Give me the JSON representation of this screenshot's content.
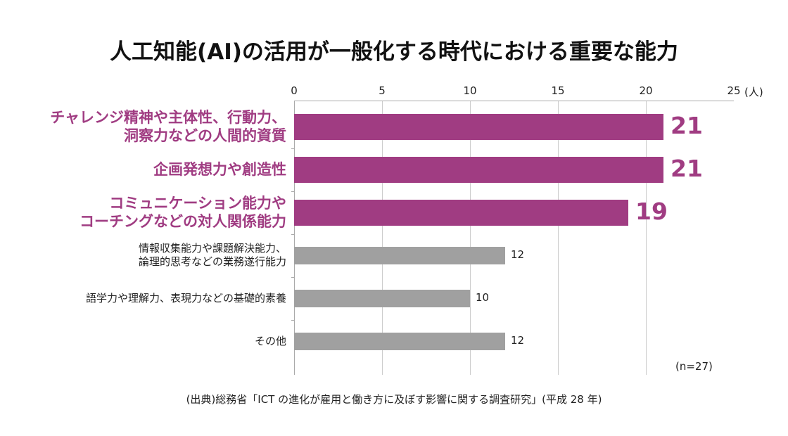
{
  "chart_data": {
    "type": "bar",
    "orientation": "horizontal",
    "title": "人工知能(AI)の活用が一般化する時代における重要な能力",
    "categories": [
      "チャレンジ精神や主体性、行動力、\n洞察力などの人間的資質",
      "企画発想力や創造性",
      "コミュニケーション能力や\nコーチングなどの対人関係能力",
      "情報収集能力や課題解決能力、\n論理的思考などの業務遂行能力",
      "語学力や理解力、表現力などの基礎的素養",
      "その他"
    ],
    "values": [
      21,
      21,
      19,
      12,
      10,
      12
    ],
    "highlighted": [
      true,
      true,
      true,
      false,
      false,
      false
    ],
    "xlim": [
      0,
      25
    ],
    "xticks": [
      "0",
      "5",
      "10",
      "15",
      "20",
      "25"
    ],
    "xunit": "(人)",
    "grid": true,
    "note": "(n=27)",
    "colors": {
      "highlight": "#a03c82",
      "normal": "#a0a0a0"
    }
  },
  "source": "(出典)総務省「ICT の進化が雇用と働き方に及ぼす影響に関する調査研究」(平成 28 年)"
}
